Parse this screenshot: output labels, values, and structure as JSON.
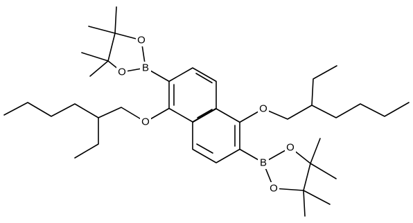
{
  "atoms": [
    {
      "label": "B"
    },
    {
      "label": "O"
    },
    {
      "label": "O"
    },
    {
      "label": "O"
    },
    {
      "label": "O"
    },
    {
      "label": "B"
    },
    {
      "label": "O"
    },
    {
      "label": "O"
    }
  ]
}
